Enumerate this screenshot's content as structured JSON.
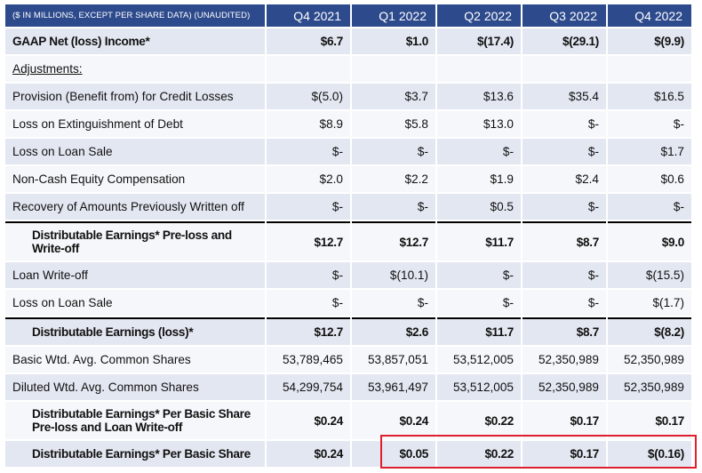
{
  "header": {
    "label": "($ IN MILLIONS, EXCEPT PER SHARE DATA) (UNAUDITED)",
    "periods": [
      "Q4 2021",
      "Q1 2022",
      "Q2 2022",
      "Q3 2022",
      "Q4 2022"
    ]
  },
  "rows": [
    {
      "label": "GAAP Net (loss) Income*",
      "values": [
        "$6.7",
        "$1.0",
        "$(17.4)",
        "$(29.1)",
        "$(9.9)"
      ]
    },
    {
      "label": "Adjustments:",
      "values": [
        "",
        "",
        "",
        "",
        ""
      ]
    },
    {
      "label": "Provision (Benefit from) for Credit Losses",
      "values": [
        "$(5.0)",
        "$3.7",
        "$13.6",
        "$35.4",
        "$16.5"
      ]
    },
    {
      "label": "Loss on Extinguishment of Debt",
      "values": [
        "$8.9",
        "$5.8",
        "$13.0",
        "$-",
        "$-"
      ]
    },
    {
      "label": "Loss on Loan Sale",
      "values": [
        "$-",
        "$-",
        "$-",
        "$-",
        "$1.7"
      ]
    },
    {
      "label": "Non-Cash Equity Compensation",
      "values": [
        "$2.0",
        "$2.2",
        "$1.9",
        "$2.4",
        "$0.6"
      ]
    },
    {
      "label": "Recovery of Amounts Previously Written off",
      "values": [
        "$-",
        "$-",
        "$0.5",
        "$-",
        "$-"
      ]
    },
    {
      "label": "Distributable Earnings* Pre-loss and Write-off",
      "values": [
        "$12.7",
        "$12.7",
        "$11.7",
        "$8.7",
        "$9.0"
      ]
    },
    {
      "label": "Loan Write-off",
      "values": [
        "$-",
        "$(10.1)",
        "$-",
        "$-",
        "$(15.5)"
      ]
    },
    {
      "label": "Loss on Loan Sale",
      "values": [
        "$-",
        "$-",
        "$-",
        "$-",
        "$(1.7)"
      ]
    },
    {
      "label": "Distributable Earnings (loss)*",
      "values": [
        "$12.7",
        "$2.6",
        "$11.7",
        "$8.7",
        "$(8.2)"
      ]
    },
    {
      "label": "Basic Wtd. Avg. Common Shares",
      "values": [
        "53,789,465",
        "53,857,051",
        "53,512,005",
        "52,350,989",
        "52,350,989"
      ]
    },
    {
      "label": "Diluted Wtd. Avg. Common Shares",
      "values": [
        "54,299,754",
        "53,961,497",
        "53,512,005",
        "52,350,989",
        "52,350,989"
      ]
    },
    {
      "label": "Distributable Earnings* Per Basic Share Pre-loss and Loan Write-off",
      "values": [
        "$0.24",
        "$0.24",
        "$0.22",
        "$0.17",
        "$0.17"
      ]
    },
    {
      "label": "Distributable Earnings* Per Basic Share",
      "values": [
        "$0.24",
        "$0.05",
        "$0.22",
        "$0.17",
        "$(0.16)"
      ]
    }
  ],
  "colors": {
    "header_bg": "#2d4a8c",
    "row_shade": "#e3e7f1",
    "row_light": "#f6f7fa",
    "highlight": "#e01f2d"
  }
}
